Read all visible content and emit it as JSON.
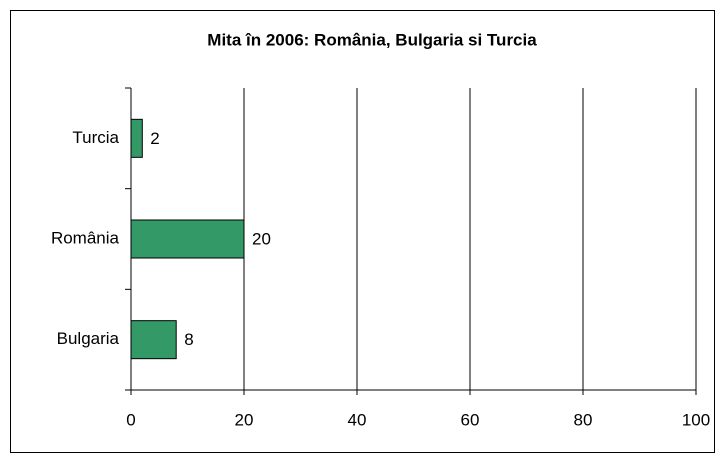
{
  "chart_data": {
    "type": "bar",
    "orientation": "horizontal",
    "title": "Mita în 2006: România, Bulgaria si Turcia",
    "categories": [
      "Turcia",
      "România",
      "Bulgaria"
    ],
    "values": [
      2,
      20,
      8
    ],
    "color": "#339966",
    "xlim": [
      0,
      100
    ],
    "xticks": [
      0,
      20,
      40,
      60,
      80,
      100
    ],
    "grid": true
  }
}
